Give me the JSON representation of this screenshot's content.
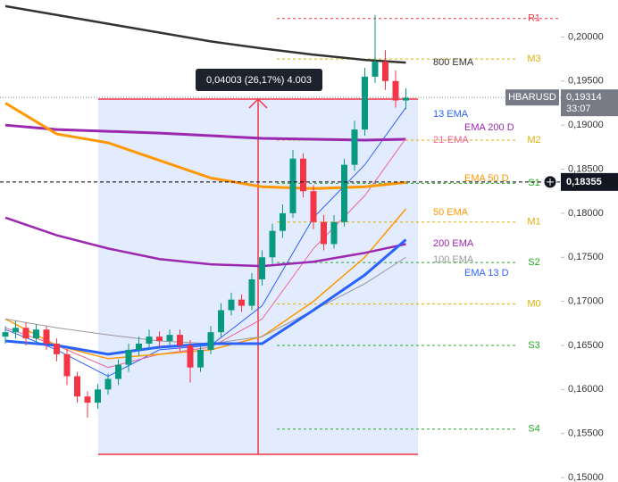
{
  "chart_data": {
    "type": "candlestick",
    "symbol": "HBARUSD",
    "countdown": "33:07",
    "ylim": [
      0.1495,
      0.2042
    ],
    "yticks": [
      {
        "value": 0.15,
        "label": "0,15000"
      },
      {
        "value": 0.155,
        "label": "0,15500"
      },
      {
        "value": 0.16,
        "label": "0,16000"
      },
      {
        "value": 0.165,
        "label": "0,16500"
      },
      {
        "value": 0.17,
        "label": "0,17000"
      },
      {
        "value": 0.175,
        "label": "0,17500"
      },
      {
        "value": 0.18,
        "label": "0,18000"
      },
      {
        "value": 0.185,
        "label": "0,18500"
      },
      {
        "value": 0.19,
        "label": "0,19000"
      },
      {
        "value": 0.195,
        "label": "0,19500"
      },
      {
        "value": 0.2,
        "label": "0,20000"
      }
    ],
    "last_price": {
      "value": 0.19314,
      "label": "0,19314"
    },
    "crosshair_price": {
      "value": 0.18355,
      "label": "0,18355"
    },
    "measure_label": "0,04003 (26,17%) 4.003",
    "up_color": "#089981",
    "down_color": "#f23645",
    "open": [
      0.166,
      0.1665,
      0.167,
      0.1658,
      0.1668,
      0.1652,
      0.164,
      0.1615,
      0.1592,
      0.1585,
      0.16,
      0.1612,
      0.1628,
      0.1645,
      0.1652,
      0.166,
      0.1655,
      0.1662,
      0.165,
      0.1625,
      0.1645,
      0.1665,
      0.169,
      0.1702,
      0.1695,
      0.1725,
      0.175,
      0.178,
      0.18,
      0.1862,
      0.1825,
      0.179,
      0.1765,
      0.179,
      0.1855,
      0.1895,
      0.1955,
      0.1972,
      0.195,
      0.1928
    ],
    "high": [
      0.1672,
      0.1678,
      0.1676,
      0.1674,
      0.1672,
      0.1658,
      0.1646,
      0.162,
      0.1598,
      0.1606,
      0.1618,
      0.1634,
      0.1652,
      0.166,
      0.1668,
      0.1666,
      0.1668,
      0.1668,
      0.1656,
      0.165,
      0.1672,
      0.1698,
      0.171,
      0.1708,
      0.1732,
      0.1758,
      0.1788,
      0.181,
      0.1872,
      0.1868,
      0.1832,
      0.1798,
      0.1798,
      0.1862,
      0.1905,
      0.1965,
      0.2025,
      0.1985,
      0.1962,
      0.1942
    ],
    "low": [
      0.1652,
      0.1658,
      0.165,
      0.1652,
      0.1645,
      0.1632,
      0.1605,
      0.1585,
      0.1568,
      0.1578,
      0.1594,
      0.1605,
      0.162,
      0.1638,
      0.1645,
      0.1648,
      0.165,
      0.1644,
      0.1608,
      0.162,
      0.164,
      0.166,
      0.1684,
      0.1688,
      0.169,
      0.1718,
      0.1742,
      0.1772,
      0.1795,
      0.1818,
      0.1782,
      0.1758,
      0.176,
      0.1785,
      0.1848,
      0.1888,
      0.1948,
      0.194,
      0.192,
      0.1918
    ],
    "close": [
      0.1665,
      0.167,
      0.1658,
      0.1668,
      0.1652,
      0.164,
      0.1615,
      0.1592,
      0.1585,
      0.16,
      0.1612,
      0.1628,
      0.1645,
      0.1652,
      0.166,
      0.1655,
      0.1662,
      0.165,
      0.1625,
      0.1645,
      0.1665,
      0.169,
      0.1702,
      0.1695,
      0.1725,
      0.175,
      0.178,
      0.18,
      0.1862,
      0.1825,
      0.179,
      0.1765,
      0.179,
      0.1855,
      0.1895,
      0.1955,
      0.1972,
      0.195,
      0.1928,
      0.1931
    ],
    "lines": [
      {
        "name": "800 EMA",
        "color": "#333333",
        "width": 2.5,
        "x": [
          0,
          5,
          10,
          15,
          20,
          25,
          30,
          35,
          39
        ],
        "values": [
          0.2035,
          0.2025,
          0.2015,
          0.2005,
          0.1995,
          0.1987,
          0.198,
          0.1974,
          0.1971
        ]
      },
      {
        "name": "13 EMA",
        "color": "#2962ff",
        "width": 1,
        "x": [
          0,
          5,
          10,
          15,
          20,
          25,
          30,
          35,
          39
        ],
        "values": [
          0.1668,
          0.1645,
          0.1615,
          0.1645,
          0.165,
          0.1695,
          0.1795,
          0.1855,
          0.192
        ]
      },
      {
        "name": "EMA 200 D",
        "color": "#9c27b0",
        "width": 3,
        "x": [
          0,
          5,
          10,
          15,
          20,
          25,
          30,
          35,
          39
        ],
        "values": [
          0.19,
          0.1895,
          0.1893,
          0.1891,
          0.1888,
          0.1885,
          0.1884,
          0.1883,
          0.1884
        ]
      },
      {
        "name": "21-EMA",
        "color": "#f06292",
        "width": 1,
        "x": [
          0,
          5,
          10,
          15,
          20,
          25,
          30,
          35,
          39
        ],
        "values": [
          0.167,
          0.165,
          0.1625,
          0.164,
          0.1648,
          0.168,
          0.176,
          0.182,
          0.1885
        ]
      },
      {
        "name": "EMA 50 D",
        "color": "#ff9800",
        "width": 3,
        "x": [
          0,
          5,
          10,
          15,
          20,
          25,
          30,
          35,
          39
        ],
        "values": [
          0.1925,
          0.189,
          0.188,
          0.186,
          0.184,
          0.183,
          0.1828,
          0.183,
          0.1835
        ]
      },
      {
        "name": "50 EMA",
        "color": "#ff9800",
        "width": 1.5,
        "x": [
          0,
          5,
          10,
          15,
          20,
          25,
          30,
          35,
          39
        ],
        "values": [
          0.168,
          0.165,
          0.1635,
          0.164,
          0.1645,
          0.166,
          0.17,
          0.175,
          0.1805
        ]
      },
      {
        "name": "200 EMA",
        "color": "#9c27b0",
        "width": 2.5,
        "x": [
          0,
          5,
          10,
          15,
          20,
          25,
          30,
          35,
          39
        ],
        "values": [
          0.1795,
          0.1775,
          0.176,
          0.1748,
          0.1742,
          0.174,
          0.1745,
          0.1755,
          0.1765
        ]
      },
      {
        "name": "100 EMA",
        "color": "#999999",
        "width": 1,
        "x": [
          0,
          5,
          10,
          15,
          20,
          25,
          30,
          35,
          39
        ],
        "values": [
          0.168,
          0.167,
          0.1662,
          0.1655,
          0.1652,
          0.166,
          0.169,
          0.172,
          0.175
        ]
      },
      {
        "name": "EMA 13 D",
        "color": "#2962ff",
        "width": 3,
        "x": [
          0,
          5,
          10,
          15,
          20,
          25,
          30,
          35,
          39
        ],
        "values": [
          0.1655,
          0.165,
          0.164,
          0.1648,
          0.1652,
          0.1652,
          0.169,
          0.173,
          0.177
        ]
      }
    ],
    "levels": [
      {
        "name": "R1",
        "value": 0.2021,
        "color": "#f23645"
      },
      {
        "name": "M3",
        "value": 0.1975,
        "color": "#e0b000"
      },
      {
        "name": "M2",
        "value": 0.1883,
        "color": "#e0b000"
      },
      {
        "name": "S1",
        "value": 0.1834,
        "color": "#22aa22"
      },
      {
        "name": "M1",
        "value": 0.179,
        "color": "#e0b000"
      },
      {
        "name": "S2",
        "value": 0.1744,
        "color": "#22aa22"
      },
      {
        "name": "M0",
        "value": 0.1697,
        "color": "#e0b000"
      },
      {
        "name": "S3",
        "value": 0.165,
        "color": "#22aa22"
      },
      {
        "name": "S4",
        "value": 0.1555,
        "color": "#22aa22"
      }
    ]
  }
}
